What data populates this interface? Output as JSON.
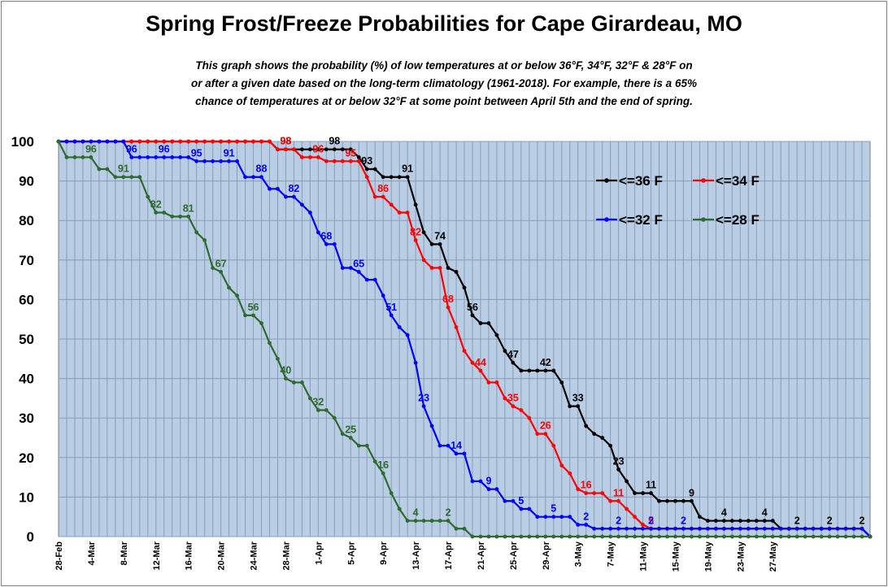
{
  "chart_data": {
    "type": "line",
    "title": "Spring Frost/Freeze Probabilities for Cape Girardeau, MO",
    "subtitle_lines": [
      "This graph shows the probability (%) of  low temperatures at or below 36°F, 34°F, 32°F & 28°F on",
      "or after a given date based on the long-term climatology (1961-2018). For example, there is a 65%",
      "chance of  temperatures at or below 32°F at some point between April 5th and the end of spring."
    ],
    "xlabel": "",
    "ylabel": "",
    "ylim": [
      0,
      100
    ],
    "y_ticks": [
      0,
      10,
      20,
      30,
      40,
      50,
      60,
      70,
      80,
      90,
      100
    ],
    "grid": true,
    "background": "#b9cde5",
    "legend_position": "top-right",
    "x_tick_labels": [
      "28-Feb",
      "4-Mar",
      "8-Mar",
      "12-Mar",
      "16-Mar",
      "20-Mar",
      "24-Mar",
      "28-Mar",
      "1-Apr",
      "5-Apr",
      "9-Apr",
      "13-Apr",
      "17-Apr",
      "21-Apr",
      "25-Apr",
      "29-Apr",
      "3-May",
      "7-May",
      "11-May",
      "15-May",
      "19-May",
      "23-May",
      "27-May"
    ],
    "x_day_start": "28-Feb",
    "x_day_end": "28-May",
    "series": [
      {
        "name": "<=36 F",
        "color": "#000000",
        "values": [
          100,
          100,
          100,
          100,
          100,
          100,
          100,
          100,
          100,
          100,
          100,
          100,
          100,
          100,
          100,
          100,
          100,
          100,
          100,
          100,
          100,
          100,
          100,
          100,
          100,
          100,
          100,
          98,
          98,
          98,
          98,
          98,
          98,
          98,
          98,
          98,
          98,
          96,
          93,
          93,
          91,
          91,
          91,
          91,
          84,
          77,
          74,
          74,
          68,
          67,
          63,
          56,
          54,
          54,
          51,
          47,
          44,
          42,
          42,
          42,
          42,
          42,
          39,
          33,
          33,
          28,
          26,
          25,
          23,
          17,
          14,
          11,
          11,
          11,
          9,
          9,
          9,
          9,
          9,
          5,
          4,
          4,
          4,
          4,
          4,
          4,
          4,
          4,
          4,
          2,
          2,
          2,
          2,
          2,
          2,
          2,
          2,
          2,
          2,
          2,
          0
        ],
        "labels": [
          {
            "day": 28,
            "text": "98"
          },
          {
            "day": 34,
            "text": "98"
          },
          {
            "day": 38,
            "text": "93"
          },
          {
            "day": 43,
            "text": "91"
          },
          {
            "day": 47,
            "text": "74"
          },
          {
            "day": 51,
            "text": "56"
          },
          {
            "day": 56,
            "text": "47"
          },
          {
            "day": 60,
            "text": "42"
          },
          {
            "day": 64,
            "text": "33"
          },
          {
            "day": 69,
            "text": "23"
          },
          {
            "day": 73,
            "text": "11"
          },
          {
            "day": 78,
            "text": "9"
          },
          {
            "day": 82,
            "text": "4"
          },
          {
            "day": 87,
            "text": "4"
          },
          {
            "day": 91,
            "text": "2"
          },
          {
            "day": 95,
            "text": "2"
          },
          {
            "day": 99,
            "text": "2"
          }
        ]
      },
      {
        "name": "<=34 F",
        "color": "#ff0000",
        "values": [
          100,
          100,
          100,
          100,
          100,
          100,
          100,
          100,
          100,
          100,
          100,
          100,
          100,
          100,
          100,
          100,
          100,
          100,
          100,
          100,
          100,
          100,
          100,
          100,
          100,
          100,
          100,
          98,
          98,
          98,
          96,
          96,
          96,
          95,
          95,
          95,
          95,
          95,
          91,
          86,
          86,
          84,
          82,
          82,
          75,
          70,
          68,
          68,
          58,
          53,
          47,
          44,
          42,
          39,
          39,
          35,
          33,
          32,
          30,
          26,
          26,
          23,
          18,
          16,
          12,
          11,
          11,
          11,
          9,
          9,
          7,
          5,
          3,
          2,
          2,
          2,
          2,
          2,
          2,
          2,
          2,
          2,
          2,
          2,
          2,
          2,
          2,
          2,
          2,
          2,
          2,
          2,
          2,
          2,
          2,
          2,
          2,
          2,
          2,
          2,
          0
        ],
        "labels": [
          {
            "day": 28,
            "text": "98"
          },
          {
            "day": 32,
            "text": "96"
          },
          {
            "day": 36,
            "text": "95"
          },
          {
            "day": 40,
            "text": "86"
          },
          {
            "day": 44,
            "text": "82"
          },
          {
            "day": 48,
            "text": "68"
          },
          {
            "day": 52,
            "text": "44"
          },
          {
            "day": 56,
            "text": "35"
          },
          {
            "day": 60,
            "text": "26"
          },
          {
            "day": 65,
            "text": "16"
          },
          {
            "day": 69,
            "text": "11"
          },
          {
            "day": 73,
            "text": "5"
          }
        ]
      },
      {
        "name": "<=32 F",
        "color": "#0000ff",
        "values": [
          100,
          100,
          100,
          100,
          100,
          100,
          100,
          100,
          100,
          96,
          96,
          96,
          96,
          96,
          96,
          96,
          96,
          95,
          95,
          95,
          95,
          95,
          95,
          91,
          91,
          91,
          88,
          88,
          86,
          86,
          84,
          82,
          77,
          74,
          74,
          68,
          68,
          67,
          65,
          65,
          61,
          56,
          53,
          51,
          44,
          33,
          28,
          23,
          23,
          21,
          21,
          14,
          14,
          12,
          12,
          9,
          9,
          7,
          7,
          5,
          5,
          5,
          5,
          5,
          3,
          3,
          2,
          2,
          2,
          2,
          2,
          2,
          2,
          2,
          2,
          2,
          2,
          2,
          2,
          2,
          2,
          2,
          2,
          2,
          2,
          2,
          2,
          2,
          2,
          2,
          2,
          2,
          2,
          2,
          2,
          2,
          2,
          2,
          2,
          2,
          0
        ],
        "labels": [
          {
            "day": 9,
            "text": "96"
          },
          {
            "day": 13,
            "text": "96"
          },
          {
            "day": 17,
            "text": "95"
          },
          {
            "day": 21,
            "text": "91"
          },
          {
            "day": 25,
            "text": "88"
          },
          {
            "day": 29,
            "text": "82"
          },
          {
            "day": 33,
            "text": "68"
          },
          {
            "day": 37,
            "text": "65"
          },
          {
            "day": 41,
            "text": "51"
          },
          {
            "day": 45,
            "text": "23"
          },
          {
            "day": 49,
            "text": "14"
          },
          {
            "day": 53,
            "text": "9"
          },
          {
            "day": 57,
            "text": "5"
          },
          {
            "day": 61,
            "text": "5"
          },
          {
            "day": 65,
            "text": "2"
          },
          {
            "day": 69,
            "text": "2"
          },
          {
            "day": 73,
            "text": "2"
          },
          {
            "day": 77,
            "text": "2"
          }
        ]
      },
      {
        "name": "<=28 F",
        "color": "#2f6a2f",
        "values": [
          100,
          96,
          96,
          96,
          96,
          93,
          93,
          91,
          91,
          91,
          91,
          86,
          82,
          82,
          81,
          81,
          81,
          77,
          75,
          68,
          67,
          63,
          61,
          56,
          56,
          54,
          49,
          45,
          40,
          39,
          39,
          35,
          32,
          32,
          30,
          26,
          25,
          23,
          23,
          19,
          16,
          11,
          7,
          4,
          4,
          4,
          4,
          4,
          4,
          2,
          2,
          0,
          0,
          0,
          0,
          0,
          0,
          0,
          0,
          0,
          0,
          0,
          0,
          0,
          0,
          0,
          0,
          0,
          0,
          0,
          0,
          0,
          0,
          0,
          0,
          0,
          0,
          0,
          0,
          0,
          0,
          0,
          0,
          0,
          0,
          0,
          0,
          0,
          0,
          0,
          0,
          0,
          0,
          0,
          0,
          0,
          0,
          0,
          0,
          0,
          0
        ],
        "labels": [
          {
            "day": 4,
            "text": "96"
          },
          {
            "day": 8,
            "text": "91"
          },
          {
            "day": 12,
            "text": "82"
          },
          {
            "day": 16,
            "text": "81"
          },
          {
            "day": 20,
            "text": "67"
          },
          {
            "day": 24,
            "text": "56"
          },
          {
            "day": 28,
            "text": "40"
          },
          {
            "day": 32,
            "text": "32"
          },
          {
            "day": 36,
            "text": "25"
          },
          {
            "day": 40,
            "text": "16"
          },
          {
            "day": 44,
            "text": "4"
          },
          {
            "day": 48,
            "text": "2"
          }
        ]
      }
    ]
  }
}
